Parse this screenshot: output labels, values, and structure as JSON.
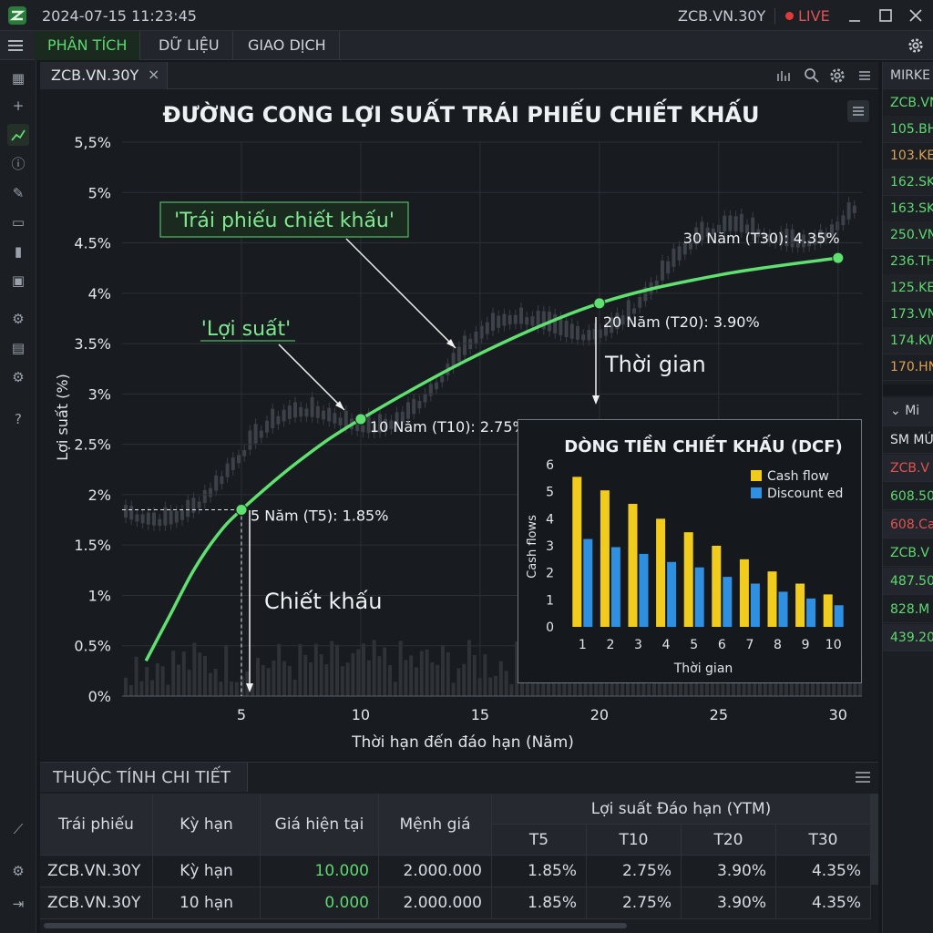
{
  "titlebar": {
    "datetime": "2024-07-15 11:23:45",
    "symbol": "ZCB.VN.30Y",
    "live_label": "LIVE"
  },
  "menu": {
    "tabs": [
      {
        "label": "PHÂN TÍCH"
      },
      {
        "label": "DỮ LIỆU"
      },
      {
        "label": "GIAO DỊCH"
      }
    ]
  },
  "chart_tab": {
    "label": "ZCB.VN.30Y"
  },
  "chart_data": [
    {
      "type": "line",
      "title": "ĐƯỜNG CONG LỢI SUẤT TRÁI PHIẾU CHIẾT KHẤU",
      "xlabel": "Thời hạn đến đáo hạn (Năm)",
      "ylabel": "Lợi suất (%)",
      "xlim": [
        0,
        31
      ],
      "ylim": [
        0,
        5.5
      ],
      "x_ticks": [
        5,
        10,
        15,
        20,
        25,
        30
      ],
      "y_ticks": [
        "0%",
        "0.5%",
        "1%",
        "1.5%",
        "2%",
        "2.5%",
        "3%",
        "3.5%",
        "4%",
        "4.5%",
        "5%",
        "5,5%"
      ],
      "series": [
        {
          "x": [
            1,
            2,
            3,
            4,
            5,
            7.5,
            10,
            15,
            20,
            25,
            30
          ],
          "values": [
            0.35,
            0.8,
            1.25,
            1.6,
            1.85,
            2.35,
            2.75,
            3.4,
            3.9,
            4.18,
            4.35
          ]
        }
      ],
      "points": [
        {
          "x": 5,
          "y": 1.85,
          "label": "5 Năm (T5): 1.85%"
        },
        {
          "x": 10,
          "y": 2.75,
          "label": "10 Năm (T10): 2.75%"
        },
        {
          "x": 20,
          "y": 3.9,
          "label": "20 Năm (T20): 3.90%"
        },
        {
          "x": 30,
          "y": 4.35,
          "label": "30 Năm (T30): 4.35%"
        }
      ],
      "annotations": {
        "discount_bond": "'Trái phiếu chiết khấu'",
        "yield": "'Lợi suất'",
        "time": "Thời gian",
        "discount": "Chiết khấu"
      },
      "grid": true
    },
    {
      "type": "bar",
      "title": "DÒNG TIỀN CHIẾT KHẤU (DCF)",
      "xlabel": "Thời gian",
      "ylabel": "Cash flows",
      "categories": [
        "1",
        "2",
        "3",
        "4",
        "5",
        "6",
        "7",
        "8",
        "9",
        "10"
      ],
      "ylim": [
        0,
        6
      ],
      "y_ticks": [
        "0",
        "1",
        "2",
        "3",
        "4",
        "5",
        "6"
      ],
      "series": [
        {
          "name": "Cash flow",
          "color": "#f2cc1c",
          "values": [
            5.55,
            5.05,
            4.55,
            4.0,
            3.5,
            3.0,
            2.5,
            2.05,
            1.6,
            1.2
          ]
        },
        {
          "name": "Discount ed",
          "color": "#2f8fe0",
          "values": [
            3.25,
            2.95,
            2.7,
            2.4,
            2.2,
            1.85,
            1.6,
            1.3,
            1.05,
            0.8
          ]
        }
      ],
      "legend": "top-right"
    }
  ],
  "right_panel": {
    "header": "MIRKE",
    "items": [
      "ZCB.VN",
      "105.BH",
      "103.KE",
      "162.SK",
      "163.SK",
      "250.VN",
      "236.TH",
      "125.KE",
      "173.VN",
      "174.KW",
      "170.HN"
    ],
    "item_colors": [
      "#5fd870",
      "#5fd870",
      "#e0a050",
      "#5fd870",
      "#5fd870",
      "#5fd870",
      "#5fd870",
      "#5fd870",
      "#5fd870",
      "#5fd870",
      "#e0a050"
    ],
    "header2": "Mi",
    "items2": [
      "SM MỨ",
      "ZCB.V",
      "608.50",
      "608.Ca",
      "ZCB.V",
      "487.50",
      "828.M",
      "439.20"
    ],
    "item2_colors": [
      "#dfe3e8",
      "#e05252",
      "#5fd870",
      "#e05252",
      "#5fd870",
      "#5fd870",
      "#5fd870",
      "#5fd870"
    ]
  },
  "table": {
    "title": "THUỘC TÍNH CHI TIẾT",
    "headers": [
      "Trái phiếu",
      "Kỳ hạn",
      "Giá hiện tại",
      "Mệnh giá"
    ],
    "ytm_header": "Lợi suất Đáo hạn (YTM)",
    "ytm_cols": [
      "T5",
      "T10",
      "T20",
      "T30"
    ],
    "rows": [
      [
        "ZCB.VN.30Y",
        "Kỳ hạn",
        "10.000",
        "2.000.000",
        "1.85%",
        "2.75%",
        "3.90%",
        "4.35%"
      ],
      [
        "ZCB.VN.30Y",
        "10 hạn",
        "0.000",
        "2.000.000",
        "1.85%",
        "2.75%",
        "3.90%",
        "4.35%"
      ]
    ]
  }
}
